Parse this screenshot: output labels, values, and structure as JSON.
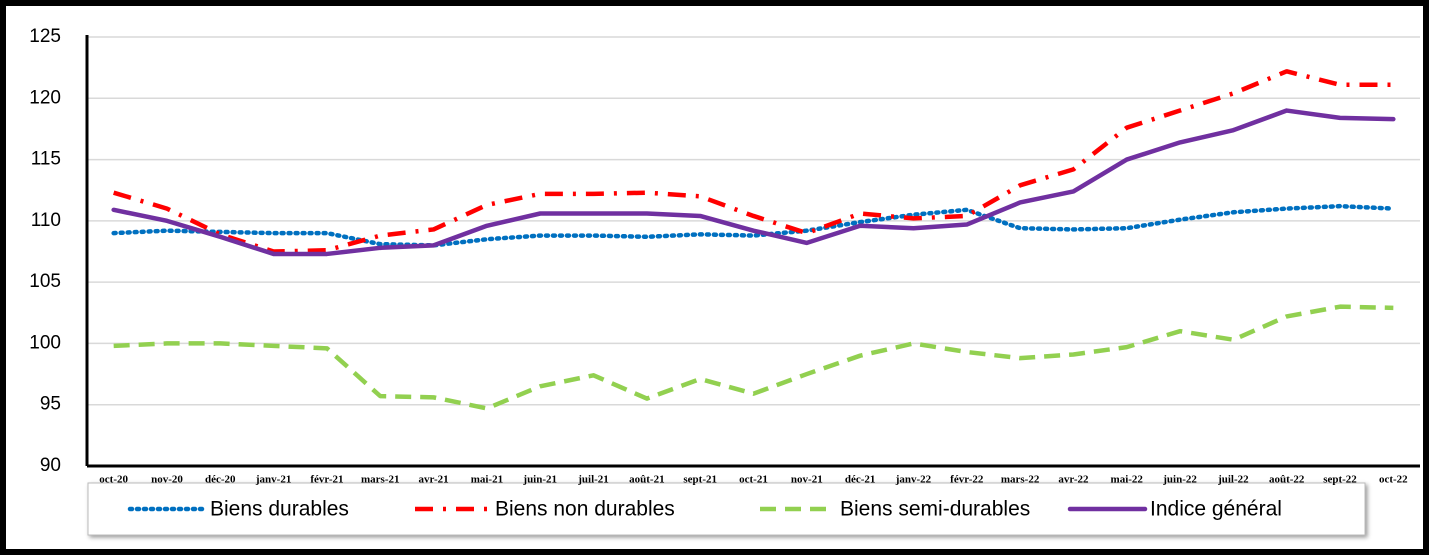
{
  "chart_data": {
    "type": "line",
    "categories": [
      "oct-20",
      "nov-20",
      "déc-20",
      "janv-21",
      "févr-21",
      "mars-21",
      "avr-21",
      "mai-21",
      "juin-21",
      "juil-21",
      "août-21",
      "sept-21",
      "oct-21",
      "nov-21",
      "déc-21",
      "janv-22",
      "févr-22",
      "mars-22",
      "avr-22",
      "mai-22",
      "juin-22",
      "juil-22",
      "août-22",
      "sept-22",
      "oct-22"
    ],
    "series": [
      {
        "name": "Biens durables",
        "color": "#0070c0",
        "dash": "dotted",
        "values": [
          109,
          109.2,
          109.1,
          109,
          109,
          108.1,
          108,
          108.5,
          108.8,
          108.8,
          108.7,
          108.9,
          108.8,
          109.2,
          109.9,
          110.5,
          110.9,
          109.4,
          109.3,
          109.4,
          110.1,
          110.7,
          111,
          111.2,
          111
        ]
      },
      {
        "name": "Biens non durables",
        "color": "#ff0000",
        "dash": "dashdot",
        "values": [
          112.3,
          111,
          108.9,
          107.5,
          107.6,
          108.8,
          109.3,
          111.3,
          112.2,
          112.2,
          112.3,
          112,
          110.4,
          109,
          110.6,
          110.2,
          110.4,
          112.9,
          114.2,
          117.6,
          119,
          120.4,
          122.2,
          121.1,
          121.1
        ]
      },
      {
        "name": "Biens semi-durables",
        "color": "#92d050",
        "dash": "dashed",
        "values": [
          99.8,
          100,
          100,
          99.8,
          99.6,
          95.7,
          95.6,
          94.7,
          96.5,
          97.4,
          95.5,
          97.1,
          95.9,
          97.5,
          99,
          100,
          99.3,
          98.8,
          99.1,
          99.7,
          101,
          100.3,
          102.2,
          103,
          102.9
        ]
      },
      {
        "name": "Indice général",
        "color": "#7030a0",
        "dash": "solid",
        "values": [
          110.9,
          110,
          108.7,
          107.3,
          107.3,
          107.8,
          108,
          109.6,
          110.6,
          110.6,
          110.6,
          110.4,
          109.2,
          108.2,
          109.6,
          109.4,
          109.7,
          111.5,
          112.4,
          115,
          116.4,
          117.4,
          119,
          118.4,
          118.3
        ]
      }
    ],
    "ylim": [
      90,
      125
    ],
    "yticks": [
      90,
      95,
      100,
      105,
      110,
      115,
      120,
      125
    ],
    "grid": true,
    "legend": "bottom"
  }
}
